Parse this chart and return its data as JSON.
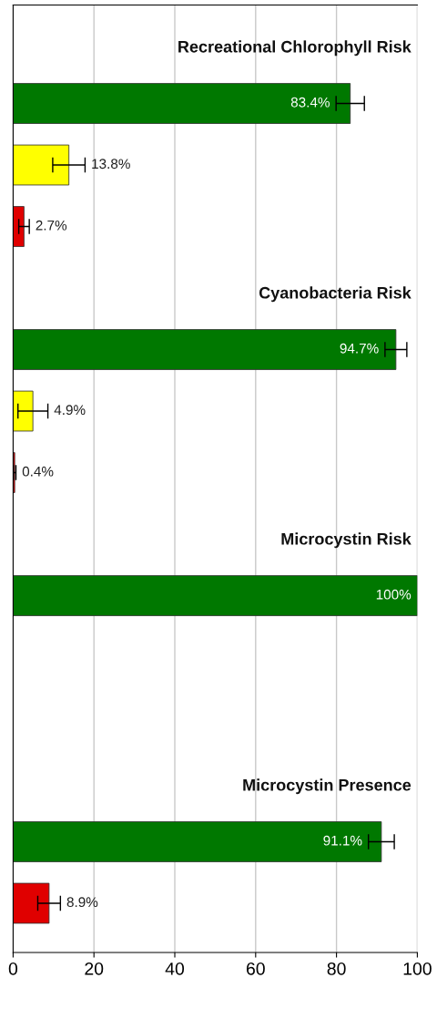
{
  "chart_data": {
    "type": "bar",
    "orientation": "horizontal",
    "categories": [
      null,
      null,
      null,
      null,
      null,
      null,
      null,
      null,
      null,
      null,
      null,
      null,
      null,
      null,
      null
    ],
    "values": [
      null,
      83.4,
      13.8,
      2.7,
      null,
      94.7,
      4.9,
      0.4,
      null,
      100,
      null,
      null,
      null,
      91.1,
      8.9
    ],
    "colors": [
      "#007800",
      "#007800",
      "#ffff00",
      "#e00000",
      "#007800",
      "#007800",
      "#ffff00",
      "#e00000",
      "#007800",
      "#007800",
      "#ffff00",
      "#e00000",
      "#007800",
      "#007800",
      "#e00000"
    ],
    "errors": [
      null,
      3.5,
      4,
      1.3,
      null,
      2.7,
      3.7,
      0.3,
      null,
      null,
      null,
      null,
      null,
      3.2,
      2.8
    ],
    "value_labels": [
      null,
      "83.4%",
      "13.8%",
      "2.7%",
      null,
      "94.7%",
      "4.9%",
      "0.4%",
      null,
      "100%",
      null,
      null,
      null,
      "91.1%",
      "8.9%"
    ],
    "annotations": [
      "Recreational Chlorophyll Risk",
      "Cyanobacteria Risk",
      "Microcystin Risk",
      "Microcystin Presence"
    ],
    "xlim": [
      0,
      100
    ],
    "xticks": [
      0,
      20,
      40,
      60,
      80,
      100
    ],
    "grid": "x",
    "tick_labels": "x"
  }
}
